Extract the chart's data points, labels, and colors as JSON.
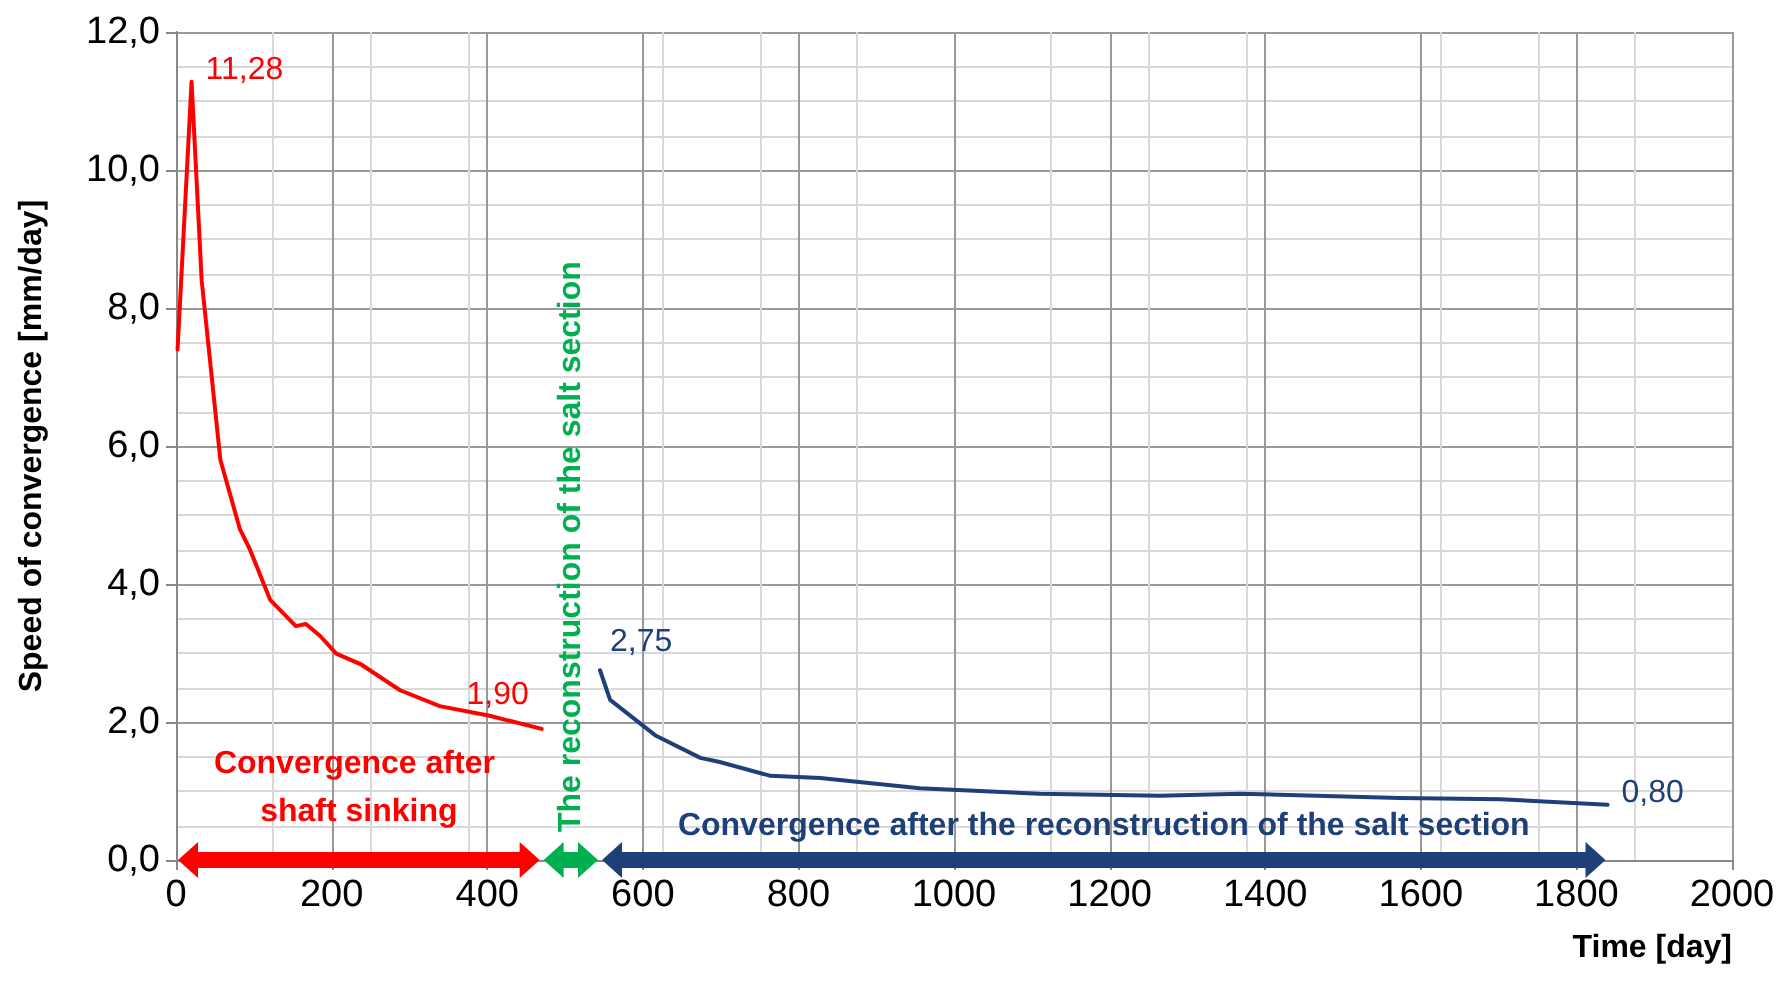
{
  "chart_data": {
    "type": "line",
    "xlabel": "Time [day]",
    "ylabel": "Speed of convergence [mm/day]",
    "xlim": [
      0,
      2000
    ],
    "xticks": [
      0,
      200,
      400,
      600,
      800,
      1000,
      1200,
      1400,
      1600,
      1800,
      2000
    ],
    "ylim": [
      0,
      12
    ],
    "yticks": [
      {
        "value": 0,
        "label": "0,0"
      },
      {
        "value": 2,
        "label": "2,0"
      },
      {
        "value": 4,
        "label": "4,0"
      },
      {
        "value": 6,
        "label": "6,0"
      },
      {
        "value": 8,
        "label": "8,0"
      },
      {
        "value": 10,
        "label": "10,0"
      },
      {
        "value": 12,
        "label": "12,0"
      }
    ],
    "grid": true,
    "marker": "none",
    "line_style": "solid",
    "series": [
      {
        "color": "#ff0000",
        "x": [
          2,
          20,
          33,
          57,
          82,
          95,
          121,
          154,
          167,
          185,
          206,
          237,
          288,
          339,
          403,
          470
        ],
        "values": [
          7.4,
          11.28,
          8.4,
          5.8,
          4.8,
          4.5,
          3.77,
          3.39,
          3.42,
          3.25,
          2.99,
          2.84,
          2.46,
          2.23,
          2.09,
          1.9
        ],
        "value_labels": [
          null,
          "11,28",
          null,
          null,
          null,
          null,
          null,
          null,
          null,
          null,
          null,
          null,
          null,
          null,
          null,
          "1,90"
        ]
      },
      {
        "color": "#1f3f78",
        "x": [
          545,
          558,
          617,
          674,
          699,
          764,
          828,
          956,
          1110,
          1265,
          1368,
          1573,
          1702,
          1840
        ],
        "values": [
          2.75,
          2.32,
          1.8,
          1.48,
          1.42,
          1.22,
          1.19,
          1.04,
          0.96,
          0.93,
          0.96,
          0.9,
          0.88,
          0.8
        ],
        "value_labels": [
          "2,75",
          null,
          null,
          null,
          null,
          null,
          null,
          null,
          null,
          null,
          null,
          null,
          null,
          "0,80"
        ]
      }
    ],
    "annotations": [
      "Convergence after shaft sinking",
      "The reconstruction of the salt section",
      "Convergence after the reconstruction of the salt section"
    ]
  }
}
